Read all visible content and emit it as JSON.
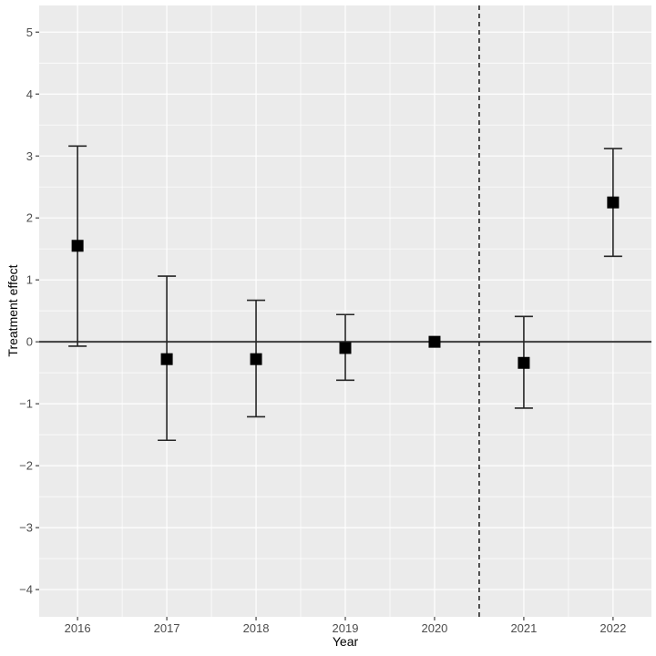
{
  "chart_data": {
    "type": "scatter",
    "subtype": "pointrange-errorbar",
    "title": "",
    "xlabel": "Year",
    "ylabel": "Treatment effect",
    "categories": [
      2016,
      2017,
      2018,
      2019,
      2020,
      2021,
      2022
    ],
    "x_tick_labels": [
      "2016",
      "2017",
      "2018",
      "2019",
      "2020",
      "2021",
      "2022"
    ],
    "y_tick_values": [
      5,
      4,
      3,
      2,
      1,
      0,
      -1,
      -2,
      -3,
      -4
    ],
    "y_tick_labels": [
      "5",
      "4",
      "3",
      "2",
      "1",
      "0",
      "−1",
      "−2",
      "−3",
      "−4"
    ],
    "points": [
      {
        "x": 2016,
        "estimate": 1.55,
        "lower": -0.07,
        "upper": 3.16
      },
      {
        "x": 2017,
        "estimate": -0.28,
        "lower": -1.59,
        "upper": 1.06
      },
      {
        "x": 2018,
        "estimate": -0.28,
        "lower": -1.21,
        "upper": 0.67
      },
      {
        "x": 2019,
        "estimate": -0.1,
        "lower": -0.62,
        "upper": 0.44
      },
      {
        "x": 2020,
        "estimate": 0.0,
        "lower": null,
        "upper": null
      },
      {
        "x": 2021,
        "estimate": -0.34,
        "lower": -1.07,
        "upper": 0.41
      },
      {
        "x": 2022,
        "estimate": 2.25,
        "lower": 1.38,
        "upper": 3.12
      }
    ],
    "reference_lines": {
      "hline": {
        "y": 0,
        "style": "solid"
      },
      "vline": {
        "x": 2020.5,
        "style": "dashed"
      }
    },
    "xlim": [
      2015.57,
      2022.43
    ],
    "ylim": [
      -4.44,
      5.43
    ],
    "grid": "major-and-minor",
    "legend": "none",
    "marker": "square",
    "colors": {
      "panel_background": "#ebebeb",
      "grid_major": "#ffffff",
      "grid_minor": "#ffffff",
      "point": "#000000",
      "error_bar": "#262626",
      "zero_line": "#3c3c3c",
      "dashed_line": "#1a1a1a",
      "tick_text": "#4d4d4d",
      "tick_mark": "#333333",
      "axis_title": "#000000"
    }
  }
}
